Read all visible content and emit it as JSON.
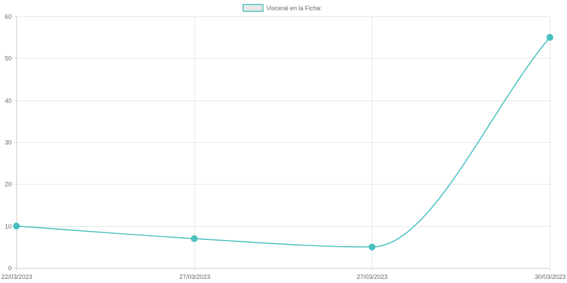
{
  "chart_data": {
    "type": "line",
    "x": [
      "22/03/2023",
      "27/03/2023",
      "27/03/2023",
      "30/03/2023"
    ],
    "series": [
      {
        "name": "Visceral en la Ficha:",
        "values": [
          10,
          7,
          5,
          55
        ]
      }
    ],
    "ylim": [
      0,
      60
    ],
    "yticks": [
      0,
      10,
      20,
      30,
      40,
      50,
      60
    ],
    "grid": true,
    "legend": "top-center",
    "line_color": "#4bc0c0",
    "legend_fill": "#e8e8e8",
    "curve": "smooth"
  }
}
